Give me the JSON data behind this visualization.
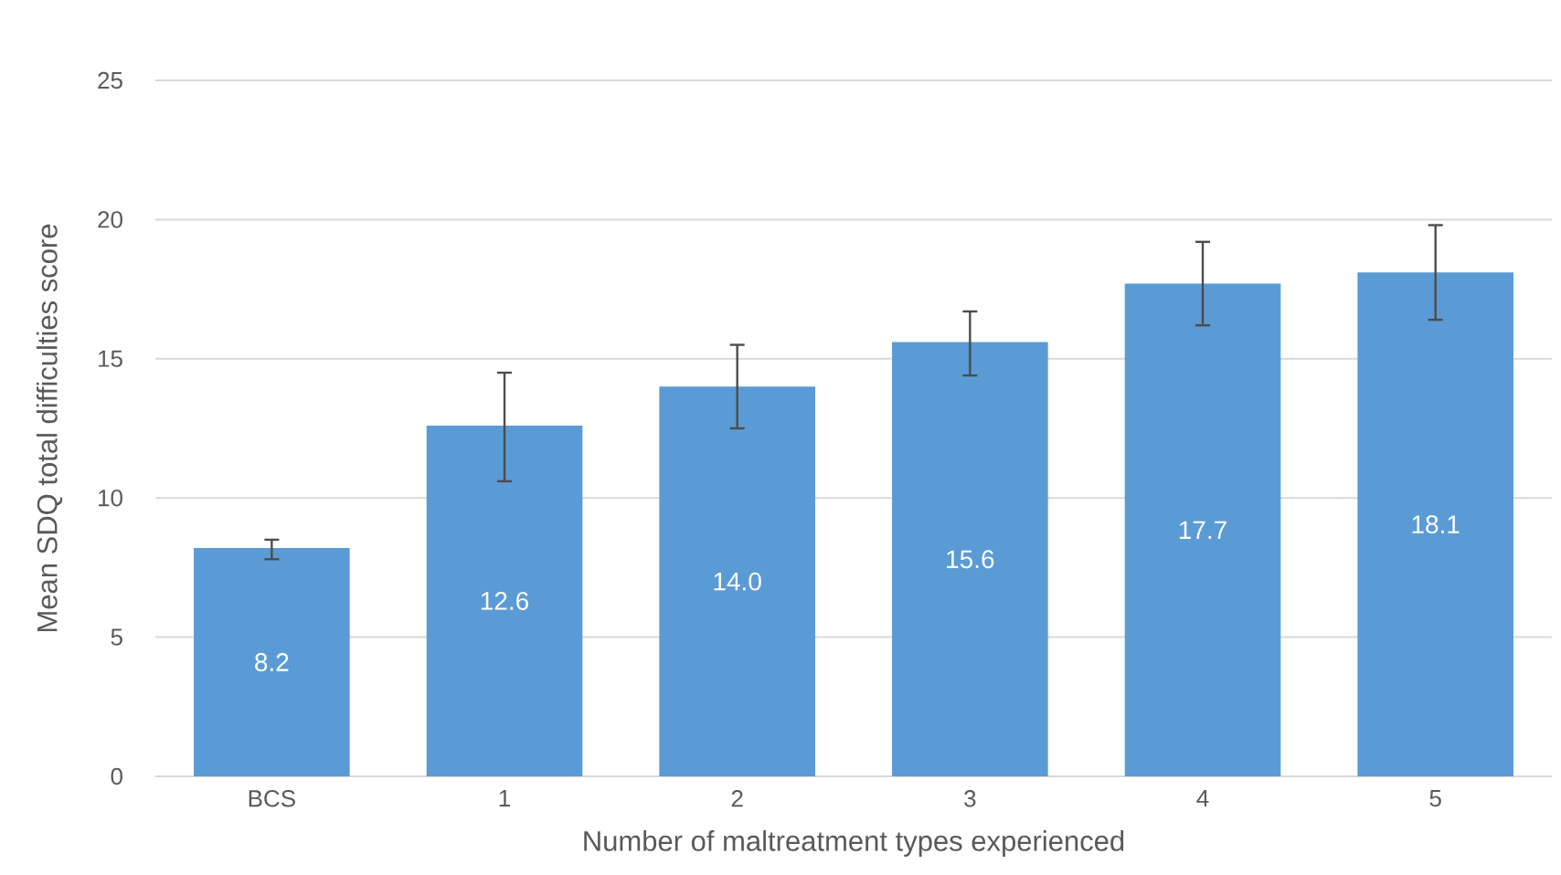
{
  "chart_data": {
    "type": "bar",
    "xlabel": "Number of maltreatment types experienced",
    "ylabel": "Mean SDQ total difficulties score",
    "categories": [
      "BCS",
      "1",
      "2",
      "3",
      "4",
      "5"
    ],
    "values": [
      8.2,
      12.6,
      14.0,
      15.6,
      17.7,
      18.1
    ],
    "errors": [
      [
        7.8,
        8.5
      ],
      [
        10.6,
        14.5
      ],
      [
        12.5,
        15.5
      ],
      [
        14.4,
        16.7
      ],
      [
        16.2,
        19.2
      ],
      [
        16.4,
        19.8
      ]
    ],
    "value_labels": [
      "8.2",
      "12.6",
      "14.0",
      "15.6",
      "17.7",
      "18.1"
    ],
    "color": "#5b9bd5",
    "ylim": [
      0,
      25
    ],
    "yticks": [
      0,
      5,
      10,
      15,
      20,
      25
    ],
    "grid": "y"
  }
}
